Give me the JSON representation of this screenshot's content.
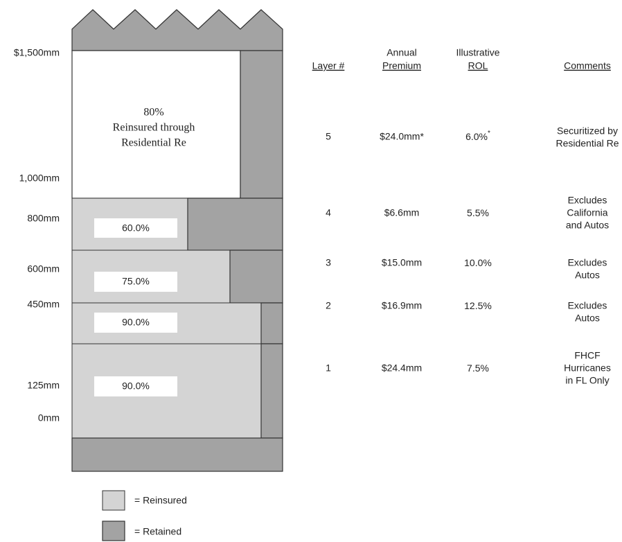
{
  "axis_labels": [
    "$1,500mm",
    "1,000mm",
    "800mm",
    "600mm",
    "450mm",
    "125mm",
    "0mm"
  ],
  "tower": {
    "layer5_text": [
      "80%",
      "Reinsured through",
      "Residential Re"
    ],
    "share_labels": [
      "60.0%",
      "75.0%",
      "90.0%",
      "90.0%"
    ]
  },
  "headers": {
    "layer": "Layer #",
    "premium": [
      "Annual",
      "Premium"
    ],
    "rol": [
      "Illustrative",
      "ROL"
    ],
    "comments": "Comments"
  },
  "layers": [
    {
      "layer": "5",
      "premium": "$24.0mm*",
      "rol": "6.0%",
      "rol_note": "*",
      "comments": [
        "Securitized by",
        "Residential Re"
      ]
    },
    {
      "layer": "4",
      "premium": "$6.6mm",
      "rol": "5.5%",
      "comments": [
        "Excludes",
        "California",
        "and Autos"
      ]
    },
    {
      "layer": "3",
      "premium": "$15.0mm",
      "rol": "10.0%",
      "comments": [
        "Excludes",
        "Autos"
      ]
    },
    {
      "layer": "2",
      "premium": "$16.9mm",
      "rol": "12.5%",
      "comments": [
        "Excludes",
        "Autos"
      ]
    },
    {
      "layer": "1",
      "premium": "$24.4mm",
      "rol": "7.5%",
      "comments": [
        "FHCF",
        "Hurricanes",
        "in FL Only"
      ]
    }
  ],
  "legend": [
    "= Reinsured",
    "= Retained"
  ]
}
